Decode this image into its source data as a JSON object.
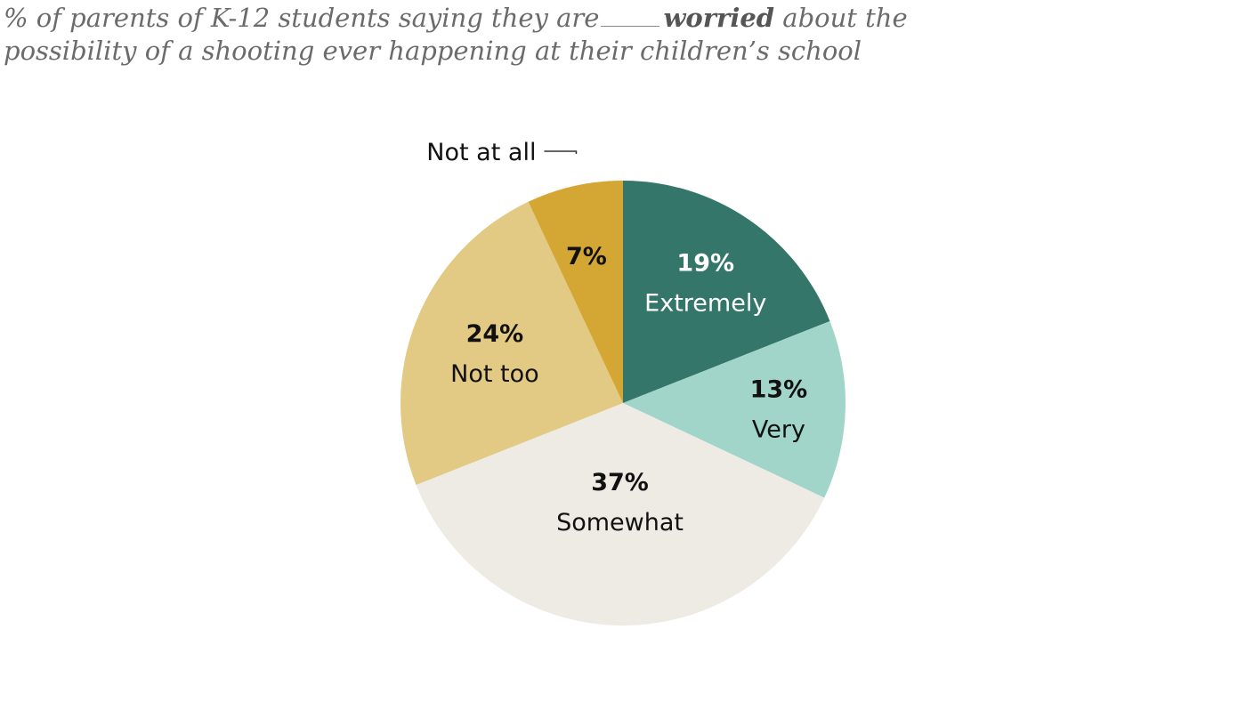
{
  "subtitle": {
    "before": "% of parents of K-12 students saying they are",
    "emphasis": "worried",
    "after_line1": "about the",
    "line2": "possibility of a shooting ever happening at their children’s school"
  },
  "chart_data": {
    "type": "pie",
    "categories": [
      "Extremely",
      "Very",
      "Somewhat",
      "Not too",
      "Not at all"
    ],
    "values": [
      19,
      13,
      37,
      24,
      7
    ],
    "value_labels": [
      "19%",
      "13%",
      "37%",
      "24%",
      "7%"
    ],
    "colors": [
      "#34766a",
      "#a2d5c9",
      "#edebe3",
      "#e2ca84",
      "#d4a734"
    ],
    "label_colors": [
      "#ffffff",
      "#111111",
      "#111111",
      "#111111",
      "#111111"
    ],
    "start": "12 o'clock",
    "direction": "clockwise",
    "callout_category": "Not at all"
  }
}
